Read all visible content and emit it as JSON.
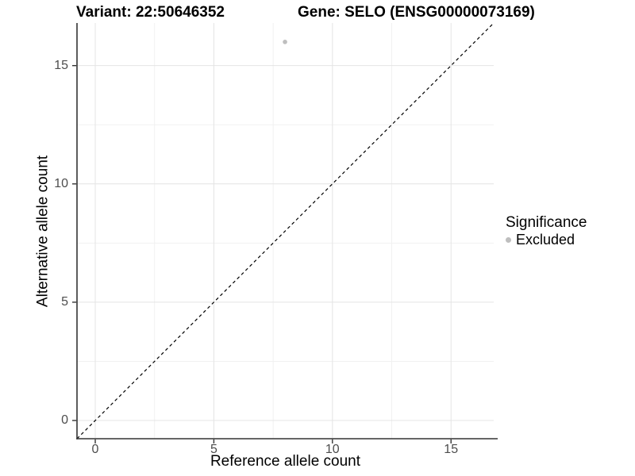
{
  "chart_data": {
    "type": "scatter",
    "titles": {
      "left": "Variant: 22:50646352",
      "right": "Gene: SELO (ENSG00000073169)"
    },
    "xlabel": "Reference allele count",
    "ylabel": "Alternative allele count",
    "xlim": [
      -0.77,
      16.8
    ],
    "ylim": [
      -0.77,
      16.8
    ],
    "xticks": [
      0,
      5,
      10,
      15
    ],
    "yticks": [
      0,
      5,
      10,
      15
    ],
    "xtick_labels": [
      "0",
      "5",
      "10",
      "15"
    ],
    "ytick_labels": [
      "0",
      "5",
      "10",
      "15"
    ],
    "minor_xticks": [
      2.5,
      7.5,
      12.5
    ],
    "minor_yticks": [
      2.5,
      7.5,
      12.5
    ],
    "grid": true,
    "series": [
      {
        "name": "Excluded",
        "color": "#bebebe",
        "points": [
          {
            "x": 8,
            "y": 16
          }
        ]
      }
    ],
    "reference_line": {
      "slope": 1,
      "intercept": 0,
      "linetype": "dashed",
      "color": "#000000"
    },
    "legend": {
      "title": "Significance",
      "position": "right",
      "items": [
        {
          "label": "Excluded",
          "color": "#bebebe"
        }
      ]
    }
  },
  "colors": {
    "background": "#ffffff",
    "grid_major": "#e4e4e4",
    "grid_minor": "#f1f1f1",
    "axis_line": "#333333",
    "tick_mark": "#333333",
    "tick_label": "#4d4d4d",
    "point": "#bebebe"
  }
}
